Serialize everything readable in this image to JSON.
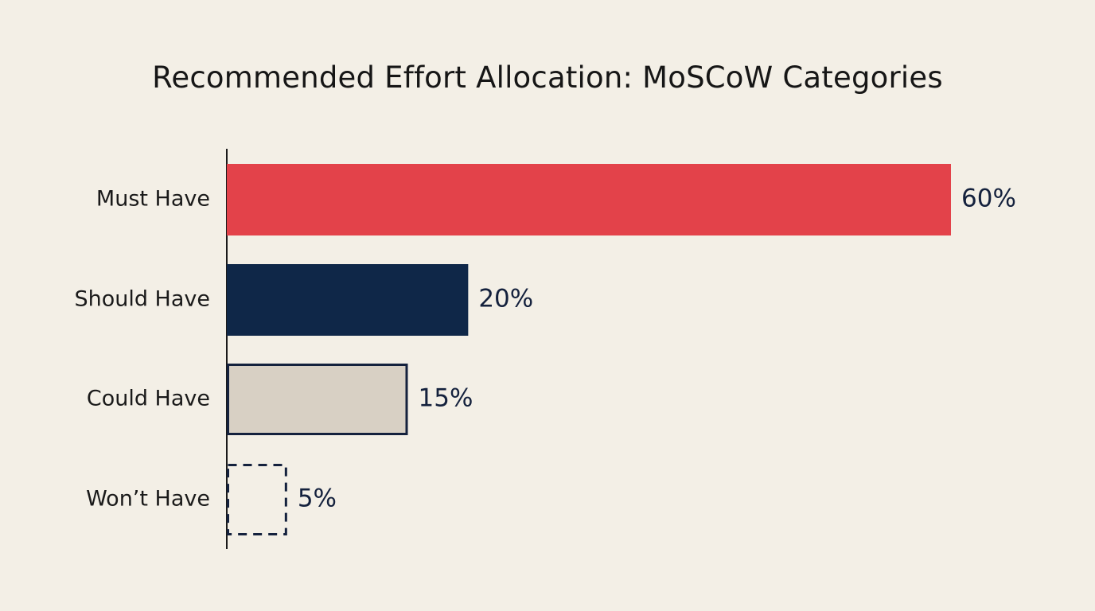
{
  "chart_data": {
    "type": "bar",
    "orientation": "horizontal",
    "title": "Recommended Effort Allocation: MoSCoW Categories",
    "xlabel": "",
    "ylabel": "",
    "categories": [
      "Must Have",
      "Should Have",
      "Could Have",
      "Won’t Have"
    ],
    "values": [
      60,
      20,
      15,
      5
    ],
    "value_labels": [
      "60%",
      "20%",
      "15%",
      "5%"
    ],
    "xlim": [
      0,
      60
    ],
    "grid": false,
    "legend": "none",
    "bar_styles": [
      {
        "fill": "#e3424a",
        "stroke": "none",
        "dashed": false
      },
      {
        "fill": "#0f2748",
        "stroke": "none",
        "dashed": false
      },
      {
        "fill": "#d8d0c4",
        "stroke": "#14213d",
        "dashed": false
      },
      {
        "fill": "none",
        "stroke": "#14213d",
        "dashed": true
      }
    ],
    "colors": {
      "background": "#f3efe6",
      "axis": "#1a1a1a",
      "value_text": "#14213d"
    }
  }
}
